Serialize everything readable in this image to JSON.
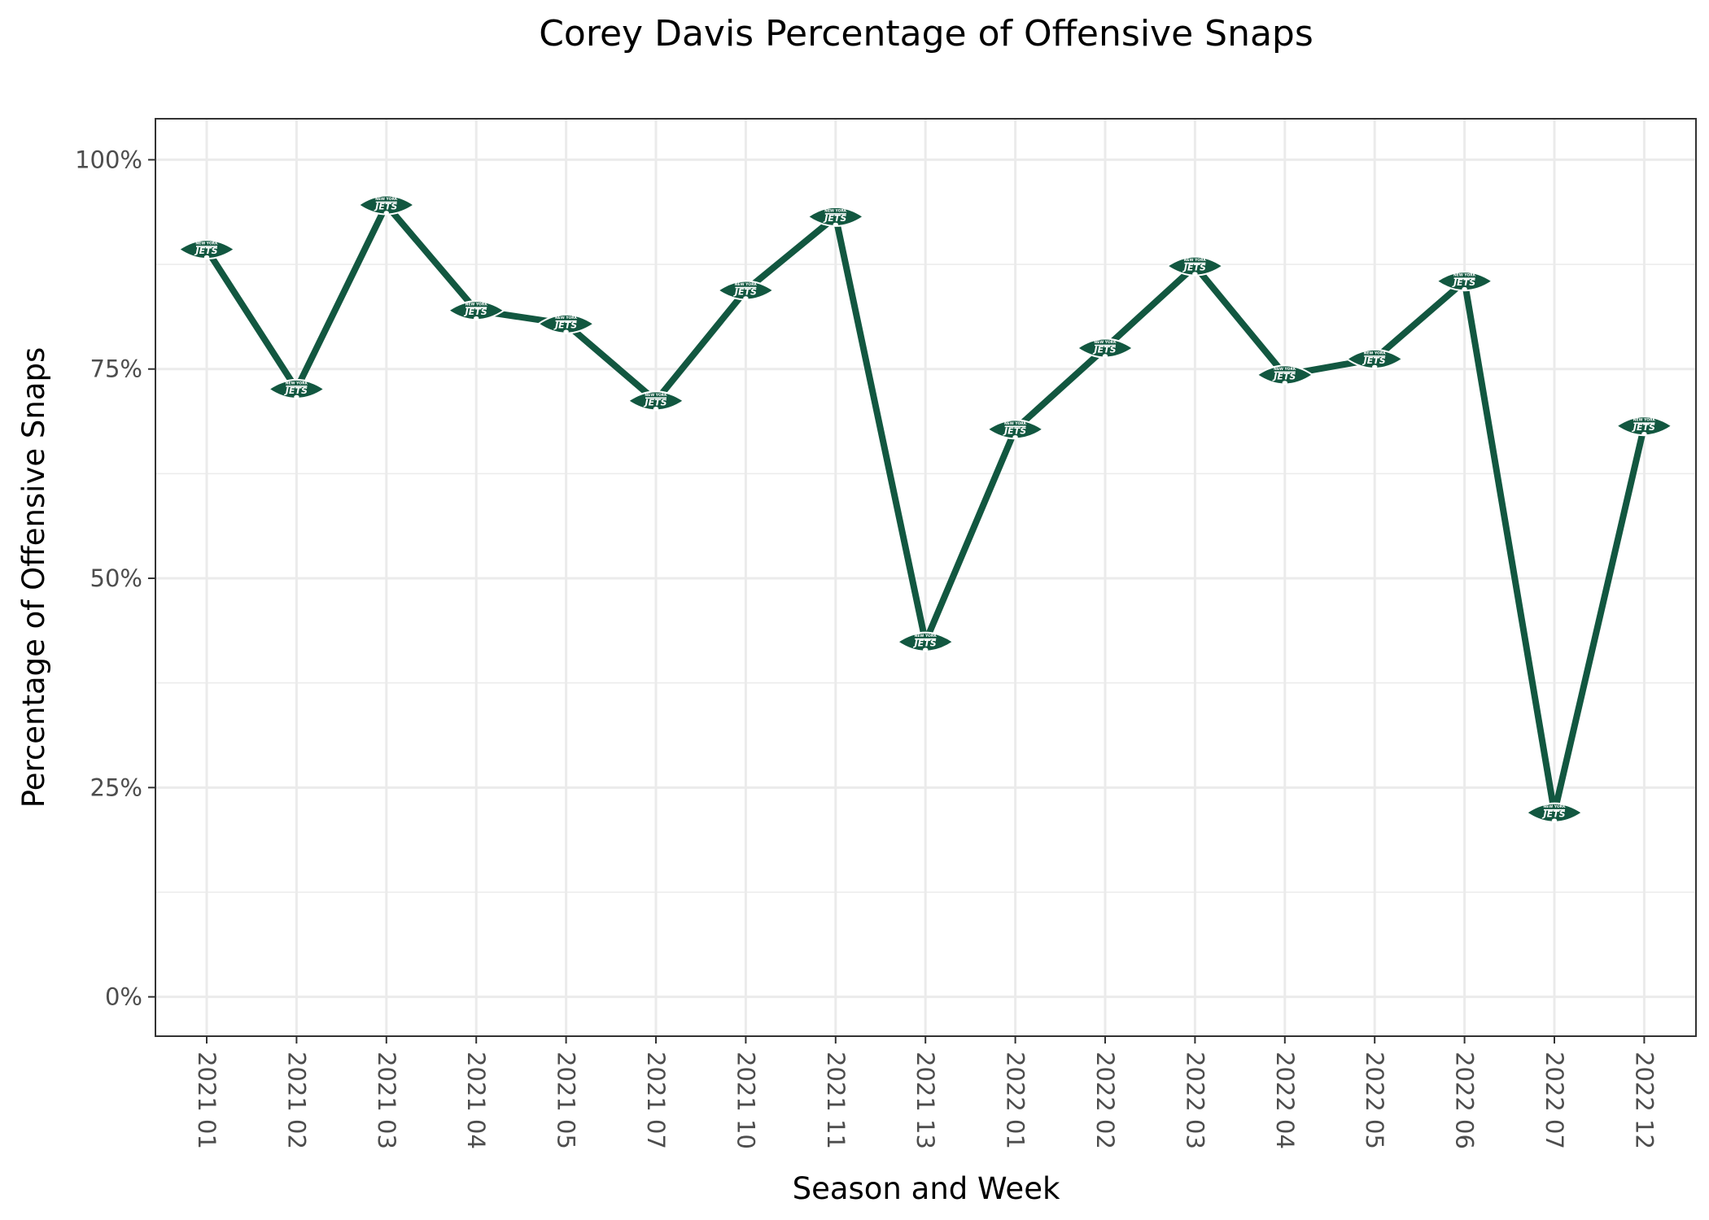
{
  "chart_data": {
    "type": "line",
    "title": "Corey Davis Percentage of Offensive Snaps",
    "xlabel": "Season and Week",
    "ylabel": "Percentage of Offensive Snaps",
    "categories": [
      "2021 01",
      "2021 02",
      "2021 03",
      "2021 04",
      "2021 05",
      "2021 07",
      "2021 10",
      "2021 11",
      "2021 13",
      "2022 01",
      "2022 02",
      "2022 03",
      "2022 04",
      "2022 05",
      "2022 06",
      "2022 07",
      "2022 12"
    ],
    "series": [
      {
        "values": [
          89.3,
          72.6,
          94.6,
          82.0,
          80.4,
          71.2,
          84.4,
          93.2,
          42.4,
          67.8,
          77.5,
          87.3,
          74.3,
          76.2,
          85.5,
          22.0,
          68.2
        ]
      }
    ],
    "y_ticks": [
      0,
      25,
      50,
      75,
      100
    ],
    "y_tick_labels": [
      "0%",
      "25%",
      "50%",
      "75%",
      "100%"
    ],
    "ylim": [
      -4.7,
      104.9
    ],
    "grid": true,
    "legend": "none",
    "marker": "new-york-jets-logo-icon",
    "logo_text_top": "NEW YORK",
    "logo_text_main": "JETS",
    "colors": {
      "line": "#125740",
      "logo_fill": "#125740",
      "logo_text": "#ffffff"
    }
  }
}
